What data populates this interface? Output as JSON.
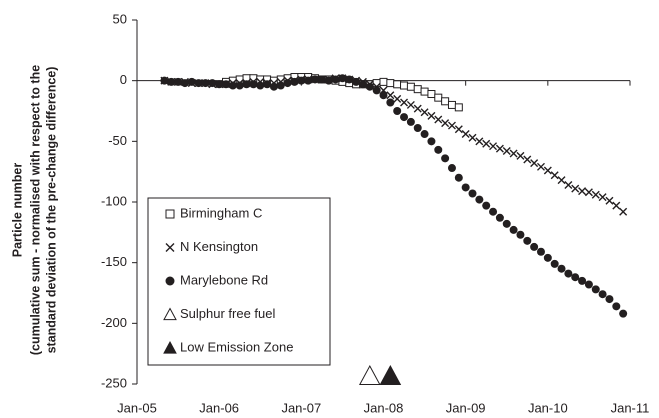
{
  "chart_data": {
    "type": "scatter",
    "y_label": [
      "Particle number",
      "(cumulative sum - normalised with respect to the",
      "standard deviation of the pre-change difference)"
    ],
    "x": [
      "2005-05",
      "2005-06",
      "2005-07",
      "2005-08",
      "2005-09",
      "2005-10",
      "2005-11",
      "2005-12",
      "2006-01",
      "2006-02",
      "2006-03",
      "2006-04",
      "2006-05",
      "2006-06",
      "2006-07",
      "2006-08",
      "2006-09",
      "2006-10",
      "2006-11",
      "2006-12",
      "2007-01",
      "2007-02",
      "2007-03",
      "2007-04",
      "2007-05",
      "2007-06",
      "2007-07",
      "2007-08",
      "2007-09",
      "2007-10",
      "2007-11",
      "2007-12",
      "2008-01",
      "2008-02",
      "2008-03",
      "2008-04",
      "2008-05",
      "2008-06",
      "2008-07",
      "2008-08",
      "2008-09",
      "2008-10",
      "2008-11",
      "2008-12",
      "2009-01",
      "2009-02",
      "2009-03",
      "2009-04",
      "2009-05",
      "2009-06",
      "2009-07",
      "2009-08",
      "2009-09",
      "2009-10",
      "2009-11",
      "2009-12",
      "2010-01",
      "2010-02",
      "2010-03",
      "2010-04",
      "2010-05",
      "2010-06",
      "2010-07",
      "2010-08",
      "2010-09",
      "2010-10",
      "2010-11",
      "2010-12"
    ],
    "series": [
      {
        "name": "Birmingham C",
        "marker": "square-open",
        "color": "#231f20",
        "x": [
          "2006-02",
          "2006-03",
          "2006-04",
          "2006-05",
          "2006-06",
          "2006-07",
          "2006-08",
          "2006-09",
          "2006-10",
          "2006-11",
          "2006-12",
          "2007-01",
          "2007-02",
          "2007-03",
          "2007-04",
          "2007-05",
          "2007-06",
          "2007-07",
          "2007-08",
          "2007-09",
          "2007-10",
          "2007-11",
          "2007-12",
          "2008-01",
          "2008-02",
          "2008-03",
          "2008-04",
          "2008-05",
          "2008-06",
          "2008-07",
          "2008-08",
          "2008-09",
          "2008-10",
          "2008-11",
          "2008-12"
        ],
        "values": [
          -1,
          0,
          1,
          2,
          2,
          1,
          1,
          0,
          1,
          2,
          3,
          3,
          3,
          2,
          1,
          1,
          0,
          -1,
          -2,
          -3,
          -3,
          -3,
          -2,
          -1,
          -2,
          -3,
          -4,
          -5,
          -7,
          -9,
          -11,
          -14,
          -17,
          -20,
          -22
        ]
      },
      {
        "name": "N Kensington",
        "marker": "cross",
        "color": "#231f20",
        "values": [
          0,
          -1,
          -1,
          -1,
          -2,
          -2,
          -2,
          -3,
          -3,
          -3,
          -2,
          -2,
          -2,
          -1,
          -1,
          -2,
          -2,
          -1,
          0,
          0,
          1,
          1,
          1,
          1,
          1,
          2,
          2,
          1,
          0,
          -1,
          -3,
          -5,
          -8,
          -12,
          -15,
          -18,
          -20,
          -23,
          -26,
          -29,
          -32,
          -35,
          -37,
          -40,
          -44,
          -47,
          -50,
          -52,
          -54,
          -56,
          -58,
          -60,
          -62,
          -65,
          -68,
          -71,
          -74,
          -78,
          -82,
          -86,
          -89,
          -91,
          -92,
          -94,
          -96,
          -99,
          -103,
          -108
        ]
      },
      {
        "name": "Marylebone Rd",
        "marker": "circle",
        "color": "#231f20",
        "values": [
          0,
          -1,
          -1,
          -2,
          -1,
          -2,
          -2,
          -2,
          -3,
          -3,
          -4,
          -4,
          -3,
          -3,
          -4,
          -3,
          -5,
          -4,
          -2,
          -1,
          0,
          0,
          1,
          1,
          0,
          1,
          2,
          1,
          -1,
          -3,
          -5,
          -8,
          -12,
          -18,
          -25,
          -30,
          -34,
          -39,
          -44,
          -50,
          -57,
          -64,
          -72,
          -80,
          -88,
          -93,
          -98,
          -103,
          -108,
          -113,
          -118,
          -123,
          -127,
          -132,
          -137,
          -141,
          -146,
          -151,
          -155,
          -159,
          -162,
          -165,
          -168,
          -172,
          -176,
          -180,
          -186,
          -192
        ]
      }
    ],
    "events": [
      {
        "name": "Sulphur free fuel",
        "marker": "triangle-open",
        "x": "2007-11"
      },
      {
        "name": "Low Emission Zone",
        "marker": "triangle",
        "x": "2008-02"
      }
    ],
    "xlim": [
      "2005-01",
      "2011-01"
    ],
    "xticks": [
      {
        "value": "2005-01",
        "label": "Jan-05"
      },
      {
        "value": "2006-01",
        "label": "Jan-06"
      },
      {
        "value": "2007-01",
        "label": "Jan-07"
      },
      {
        "value": "2008-01",
        "label": "Jan-08"
      },
      {
        "value": "2009-01",
        "label": "Jan-09"
      },
      {
        "value": "2010-01",
        "label": "Jan-10"
      },
      {
        "value": "2011-01",
        "label": "Jan-11"
      }
    ],
    "ylim": [
      -250,
      50
    ],
    "yticks": [
      50,
      0,
      -50,
      -100,
      -150,
      -200,
      -250
    ]
  }
}
